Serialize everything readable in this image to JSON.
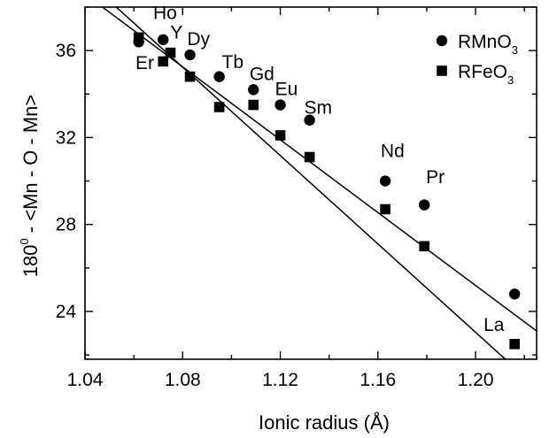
{
  "chart_data": {
    "type": "scatter",
    "xlabel": "Ionic radius (Å)",
    "ylabel": "180⁰ - <Mn - O - Mn>",
    "ylabel_parts": {
      "main": "180",
      "sup": "0",
      "rest": " - <Mn - O - Mn>"
    },
    "xlim": [
      1.04,
      1.225
    ],
    "ylim": [
      21.8,
      38.0
    ],
    "xticks": [
      1.04,
      1.08,
      1.12,
      1.16,
      1.2
    ],
    "xtick_labels": [
      "1.04",
      "1.08",
      "1.12",
      "1.16",
      "1.20"
    ],
    "yticks": [
      24,
      28,
      32,
      36
    ],
    "ytick_labels": [
      "24",
      "28",
      "32",
      "36"
    ],
    "grid": false,
    "legend_position": "top-right",
    "series": [
      {
        "name": "RMnO3",
        "legend_main": "RMnO",
        "legend_sub": "3",
        "marker": "circle",
        "x": [
          1.062,
          1.072,
          1.083,
          1.095,
          1.109,
          1.12,
          1.132,
          1.163,
          1.179,
          1.216
        ],
        "y": [
          36.4,
          36.5,
          35.8,
          34.8,
          34.2,
          33.5,
          32.8,
          30.0,
          28.9,
          24.8
        ],
        "fit": [
          [
            1.04,
            38.6
          ],
          [
            1.225,
            23.1
          ]
        ]
      },
      {
        "name": "RFeO3",
        "legend_main": "RFeO",
        "legend_sub": "3",
        "marker": "square",
        "x": [
          1.062,
          1.072,
          1.075,
          1.083,
          1.095,
          1.109,
          1.12,
          1.132,
          1.163,
          1.179,
          1.216
        ],
        "y": [
          36.6,
          35.5,
          35.9,
          34.8,
          33.4,
          33.5,
          32.1,
          31.1,
          28.7,
          27.0,
          22.5
        ],
        "fit": [
          [
            1.04,
            39.3
          ],
          [
            1.225,
            20.5
          ]
        ]
      }
    ],
    "annotations": [
      {
        "text": "Ho",
        "x": 1.0728,
        "y": 37.45
      },
      {
        "text": "Y",
        "x": 1.0775,
        "y": 36.55
      },
      {
        "text": "Dy",
        "x": 1.0865,
        "y": 36.25
      },
      {
        "text": "Er",
        "x": 1.0645,
        "y": 35.15
      },
      {
        "text": "Tb",
        "x": 1.1005,
        "y": 35.2
      },
      {
        "text": "Gd",
        "x": 1.1125,
        "y": 34.65
      },
      {
        "text": "Eu",
        "x": 1.1225,
        "y": 33.95
      },
      {
        "text": "Sm",
        "x": 1.1355,
        "y": 33.1
      },
      {
        "text": "Nd",
        "x": 1.166,
        "y": 31.1
      },
      {
        "text": "Pr",
        "x": 1.1835,
        "y": 29.9
      },
      {
        "text": "La",
        "x": 1.2075,
        "y": 23.1
      }
    ]
  }
}
